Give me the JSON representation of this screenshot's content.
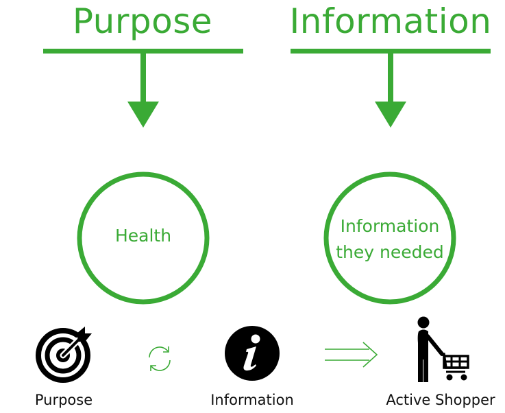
{
  "colors": {
    "accent": "#3aaa35",
    "text": "#111111",
    "background": "#ffffff"
  },
  "columns": [
    {
      "heading": "Purpose",
      "circle_text": [
        "Health"
      ]
    },
    {
      "heading": "Information",
      "circle_text": [
        "Information",
        "they needed"
      ]
    }
  ],
  "flow": [
    {
      "icon": "target-icon",
      "label": "Purpose"
    },
    {
      "icon": "cycle-icon"
    },
    {
      "icon": "info-icon",
      "label": "Information"
    },
    {
      "icon": "double-arrow-icon"
    },
    {
      "icon": "shopper-cart-icon",
      "label": "Active Shopper"
    }
  ]
}
